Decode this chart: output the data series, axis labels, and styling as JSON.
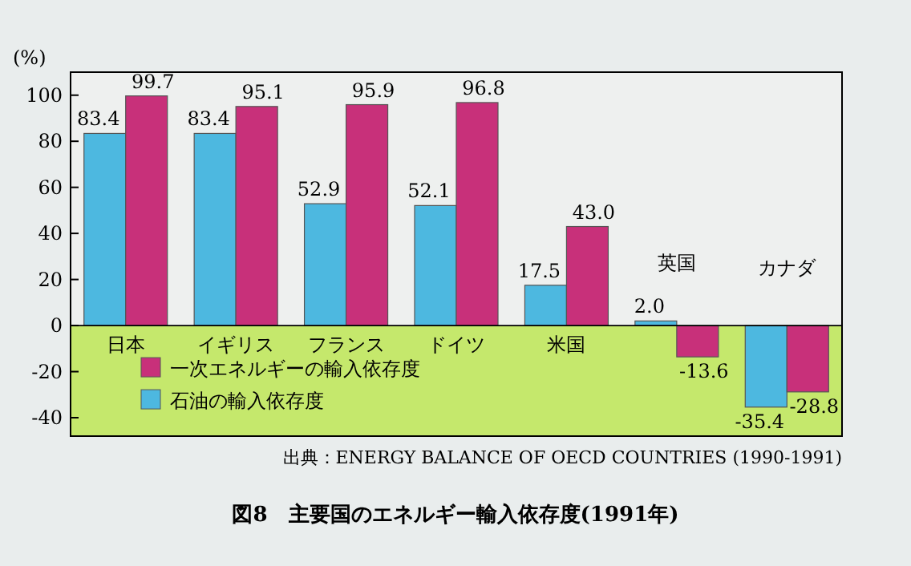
{
  "chart_data": {
    "type": "bar",
    "title": "図8　主要国のエネルギー輸入依存度(1991年)",
    "ylabel": "(%)",
    "annotations": [
      "出典：ENERGY BALANCE OF OECD COUNTRIES (1990-1991)"
    ],
    "categories": [
      "日本",
      "イギリス",
      "フランス",
      "ドイツ",
      "米国",
      "英国",
      "カナダ"
    ],
    "series": [
      {
        "name": "石油の輸入依存度",
        "color": "#4db8e0",
        "values": [
          83.4,
          83.4,
          52.9,
          52.1,
          17.5,
          2.0,
          -35.4
        ],
        "value_labels": [
          "83.4",
          "83.4",
          "52.9",
          "52.1",
          "17.5",
          "2.0",
          "-35.4"
        ]
      },
      {
        "name": "一次エネルギーの輸入依存度",
        "color": "#c8307a",
        "values": [
          99.7,
          95.1,
          95.9,
          96.8,
          43.0,
          -13.6,
          -28.8
        ],
        "value_labels": [
          "99.7",
          "95.1",
          "95.9",
          "96.8",
          "43.0",
          "-13.6",
          "-28.8"
        ]
      }
    ],
    "ylim": [
      -48,
      110
    ],
    "yticks": [
      -40,
      -20,
      0,
      20,
      40,
      60,
      80,
      100
    ],
    "bands": [
      {
        "axis": "y",
        "from": -48,
        "to": 0,
        "color": "#c5e86c"
      }
    ],
    "legend": "bottom left",
    "grid": false
  }
}
